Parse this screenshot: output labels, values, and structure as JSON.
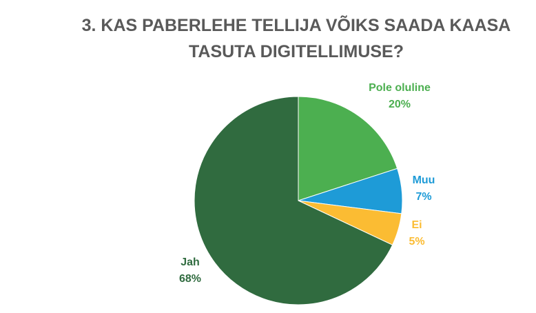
{
  "chart_data": {
    "type": "pie",
    "title": "3. KAS PABERLEHE TELLIJA VÕIKS SAADA KAASA TASUTA DIGITELLIMUSE?",
    "categories": [
      "Pole oluline",
      "Muu",
      "Ei",
      "Jah"
    ],
    "values": [
      20,
      7,
      5,
      68
    ],
    "value_labels": [
      "20%",
      "7%",
      "5%",
      "68%"
    ],
    "colors": [
      "#4caf50",
      "#1e9bd7",
      "#fbbc33",
      "#306b3f"
    ]
  }
}
